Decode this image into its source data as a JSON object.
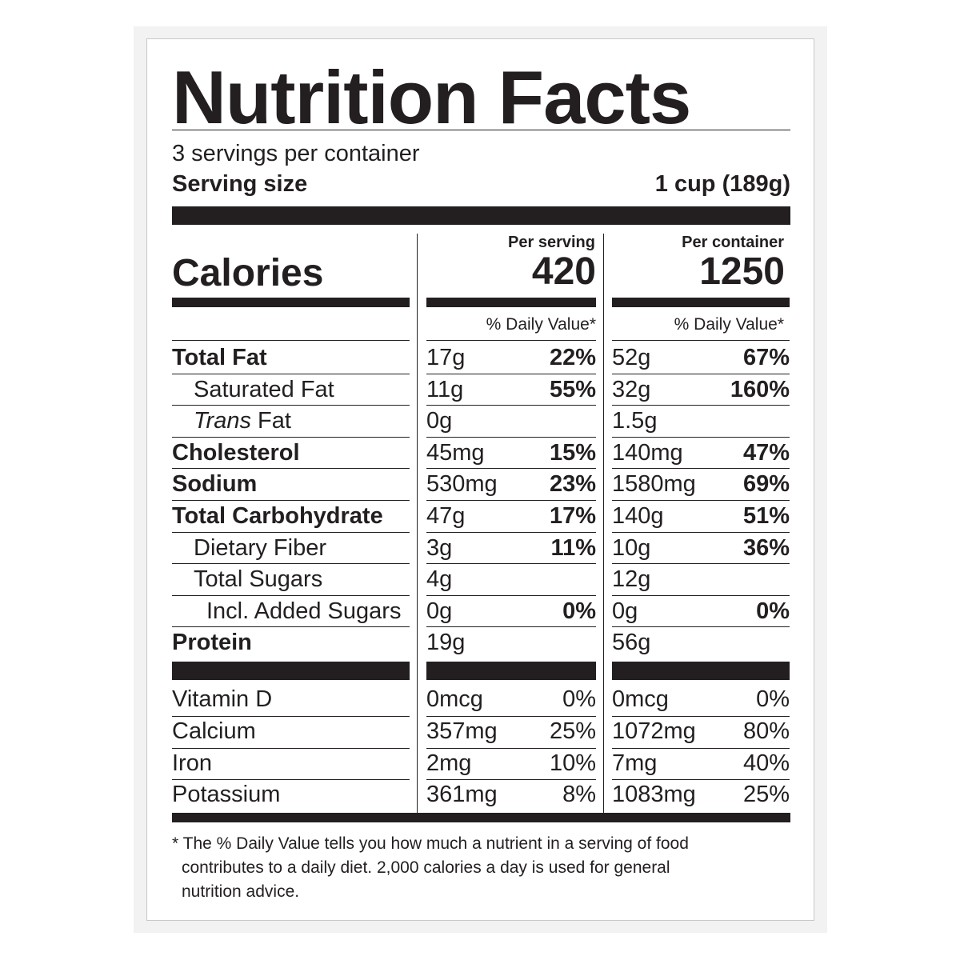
{
  "title": "Nutrition Facts",
  "servings_per_container": "3 servings per container",
  "serving_size_label": "Serving size",
  "serving_size_value": "1 cup (189g)",
  "calories_label": "Calories",
  "columns": [
    {
      "header": "Per serving",
      "calories": "420",
      "dv_header": "% Daily Value*"
    },
    {
      "header": "Per container",
      "calories": "1250",
      "dv_header": "% Daily Value*"
    }
  ],
  "nutrients": [
    {
      "name": "Total Fat",
      "indent": 0,
      "bold": true,
      "italic_prefix": "",
      "values": [
        {
          "amount": "17g",
          "dv": "22%"
        },
        {
          "amount": "52g",
          "dv": "67%"
        }
      ]
    },
    {
      "name": "Saturated Fat",
      "indent": 1,
      "bold": false,
      "italic_prefix": "",
      "values": [
        {
          "amount": "11g",
          "dv": "55%"
        },
        {
          "amount": "32g",
          "dv": "160%"
        }
      ]
    },
    {
      "name": "Fat",
      "indent": 1,
      "bold": false,
      "italic_prefix": "Trans",
      "values": [
        {
          "amount": "0g",
          "dv": ""
        },
        {
          "amount": "1.5g",
          "dv": ""
        }
      ]
    },
    {
      "name": "Cholesterol",
      "indent": 0,
      "bold": true,
      "italic_prefix": "",
      "values": [
        {
          "amount": "45mg",
          "dv": "15%"
        },
        {
          "amount": "140mg",
          "dv": "47%"
        }
      ]
    },
    {
      "name": "Sodium",
      "indent": 0,
      "bold": true,
      "italic_prefix": "",
      "values": [
        {
          "amount": "530mg",
          "dv": "23%"
        },
        {
          "amount": "1580mg",
          "dv": "69%"
        }
      ]
    },
    {
      "name": "Total Carbohydrate",
      "indent": 0,
      "bold": true,
      "italic_prefix": "",
      "values": [
        {
          "amount": "47g",
          "dv": "17%"
        },
        {
          "amount": "140g",
          "dv": "51%"
        }
      ]
    },
    {
      "name": "Dietary Fiber",
      "indent": 1,
      "bold": false,
      "italic_prefix": "",
      "values": [
        {
          "amount": "3g",
          "dv": "11%"
        },
        {
          "amount": "10g",
          "dv": "36%"
        }
      ]
    },
    {
      "name": "Total Sugars",
      "indent": 1,
      "bold": false,
      "italic_prefix": "",
      "values": [
        {
          "amount": "4g",
          "dv": ""
        },
        {
          "amount": "12g",
          "dv": ""
        }
      ]
    },
    {
      "name": "Incl. Added Sugars",
      "indent": 2,
      "bold": false,
      "italic_prefix": "",
      "values": [
        {
          "amount": "0g",
          "dv": "0%"
        },
        {
          "amount": "0g",
          "dv": "0%"
        }
      ]
    },
    {
      "name": "Protein",
      "indent": 0,
      "bold": true,
      "italic_prefix": "",
      "values": [
        {
          "amount": "19g",
          "dv": ""
        },
        {
          "amount": "56g",
          "dv": ""
        }
      ]
    }
  ],
  "vitamins": [
    {
      "name": "Vitamin D",
      "values": [
        {
          "amount": "0mcg",
          "dv": "0%"
        },
        {
          "amount": "0mcg",
          "dv": "0%"
        }
      ]
    },
    {
      "name": "Calcium",
      "values": [
        {
          "amount": "357mg",
          "dv": "25%"
        },
        {
          "amount": "1072mg",
          "dv": "80%"
        }
      ]
    },
    {
      "name": "Iron",
      "values": [
        {
          "amount": "2mg",
          "dv": "10%"
        },
        {
          "amount": "7mg",
          "dv": "40%"
        }
      ]
    },
    {
      "name": "Potassium",
      "values": [
        {
          "amount": "361mg",
          "dv": "8%"
        },
        {
          "amount": "1083mg",
          "dv": "25%"
        }
      ]
    }
  ],
  "footnote": [
    "* The % Daily Value tells you how much a nutrient in a serving of food",
    "contributes to a daily diet. 2,000 calories a day is used for general",
    "nutrition advice."
  ]
}
